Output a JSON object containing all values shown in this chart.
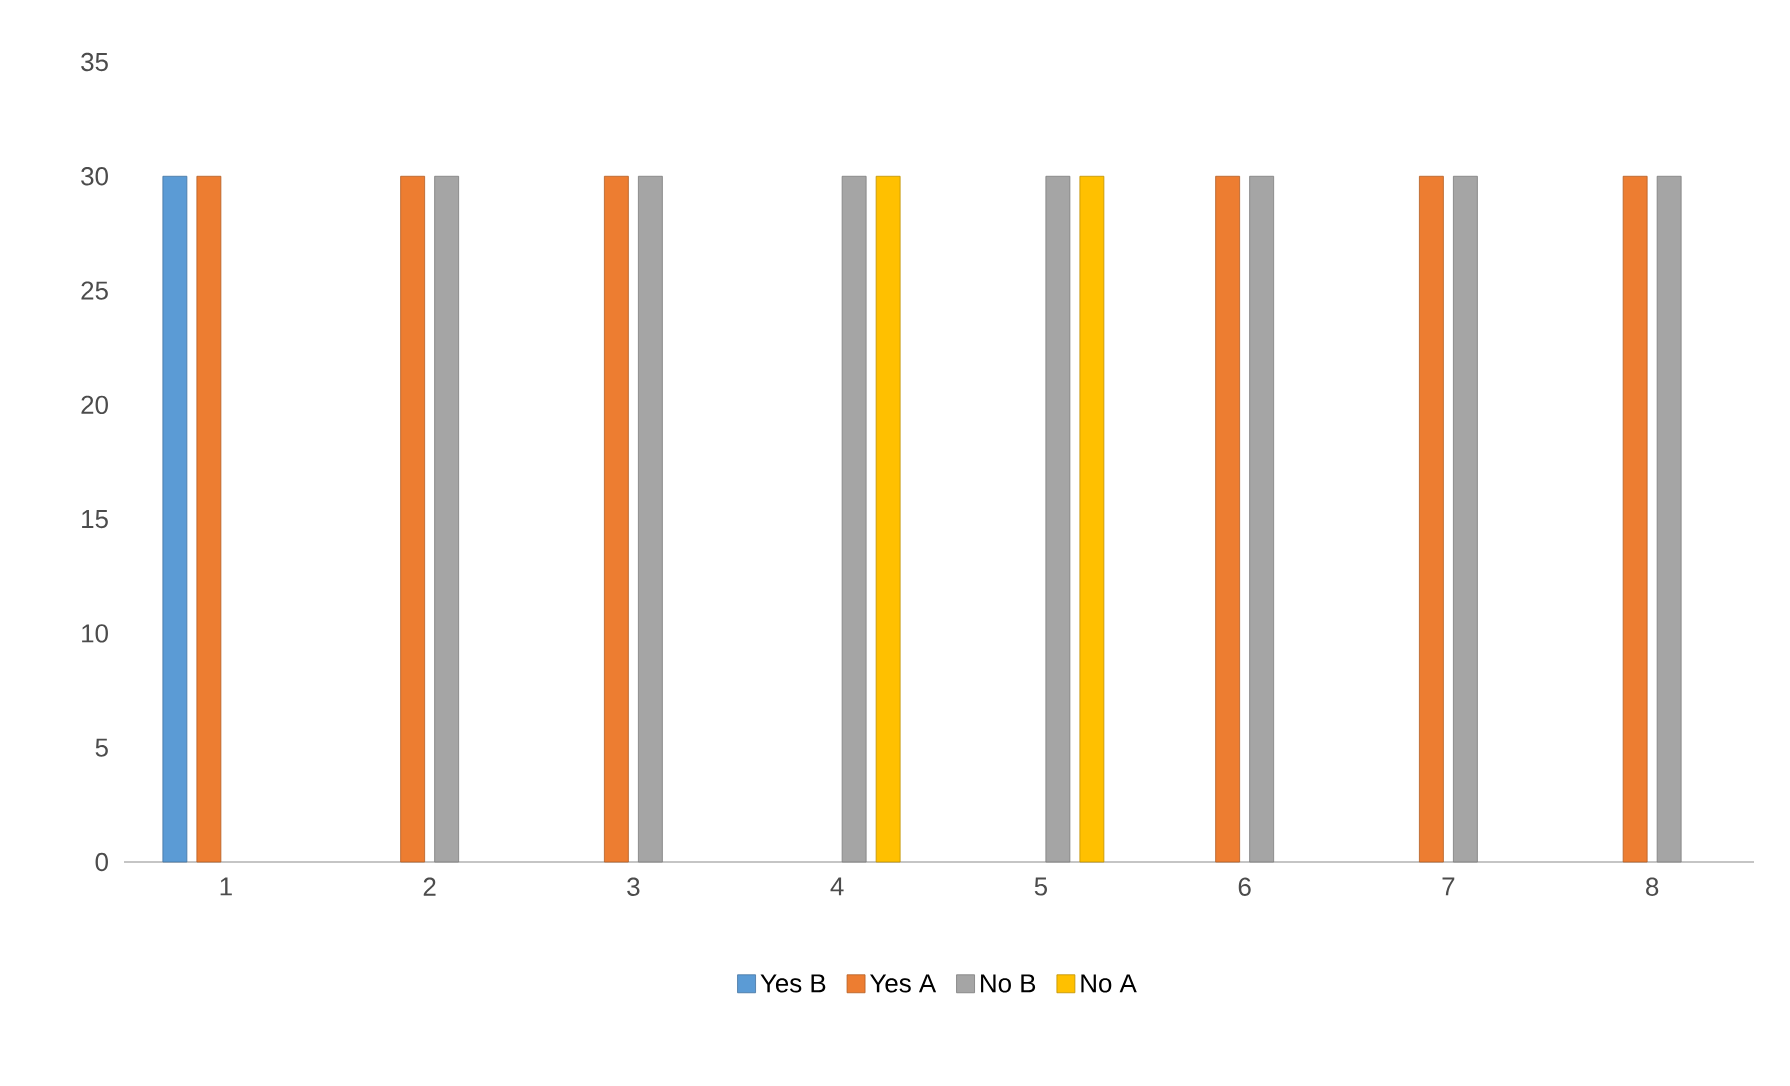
{
  "chart_data": {
    "type": "bar",
    "categories": [
      "1",
      "2",
      "3",
      "4",
      "5",
      "6",
      "7",
      "8"
    ],
    "series": [
      {
        "name": "Yes B",
        "color": "#5b9bd5",
        "values": [
          30,
          null,
          null,
          null,
          null,
          null,
          null,
          null
        ]
      },
      {
        "name": "Yes A",
        "color": "#ed7d31",
        "values": [
          30,
          30,
          30,
          null,
          null,
          30,
          30,
          30
        ]
      },
      {
        "name": "No B",
        "color": "#a5a5a5",
        "values": [
          null,
          30,
          30,
          30,
          30,
          30,
          30,
          30
        ]
      },
      {
        "name": "No A",
        "color": "#ffc000",
        "values": [
          null,
          null,
          null,
          30,
          30,
          null,
          null,
          null
        ]
      }
    ],
    "ylim": [
      0,
      35
    ],
    "yticks": [
      0,
      5,
      10,
      15,
      20,
      25,
      30,
      35
    ],
    "legend": "bottom"
  }
}
